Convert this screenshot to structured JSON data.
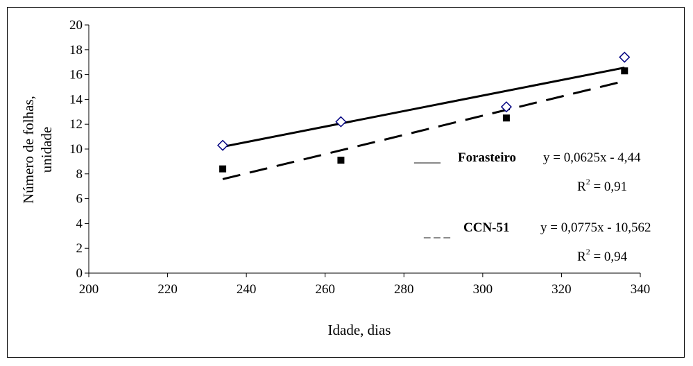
{
  "chart_data": {
    "type": "scatter",
    "xlabel": "Idade, dias",
    "ylabel_lines": [
      "Número de folhas,",
      "unidade"
    ],
    "xlim": [
      200,
      340
    ],
    "ylim": [
      0,
      20
    ],
    "x_ticks": [
      200,
      220,
      240,
      260,
      280,
      300,
      320,
      340
    ],
    "y_ticks": [
      0,
      2,
      4,
      6,
      8,
      10,
      12,
      14,
      16,
      18,
      20
    ],
    "grid": false,
    "series": [
      {
        "name": "Forasteiro",
        "marker": "open-diamond",
        "color": "#000080",
        "line_style": "solid",
        "x": [
          234,
          264,
          306,
          336
        ],
        "y": [
          10.3,
          12.2,
          13.4,
          17.4
        ],
        "trend": {
          "slope": 0.0625,
          "intercept": -4.44,
          "equation": "y = 0,0625x - 4,44",
          "r2_prefix": "R",
          "r2_value": " = 0,91",
          "legend_line": "____"
        }
      },
      {
        "name": "CCN-51",
        "marker": "filled-square",
        "color": "#000000",
        "line_style": "dashed",
        "x": [
          234,
          264,
          306,
          336
        ],
        "y": [
          8.4,
          9.1,
          12.5,
          16.3
        ],
        "trend": {
          "slope": 0.0775,
          "intercept": -10.562,
          "equation": "y = 0,0775x - 10,562",
          "r2_prefix": "R",
          "r2_value": " = 0,94",
          "legend_line": "_ _ _"
        }
      }
    ],
    "r2_superscript": "2"
  }
}
